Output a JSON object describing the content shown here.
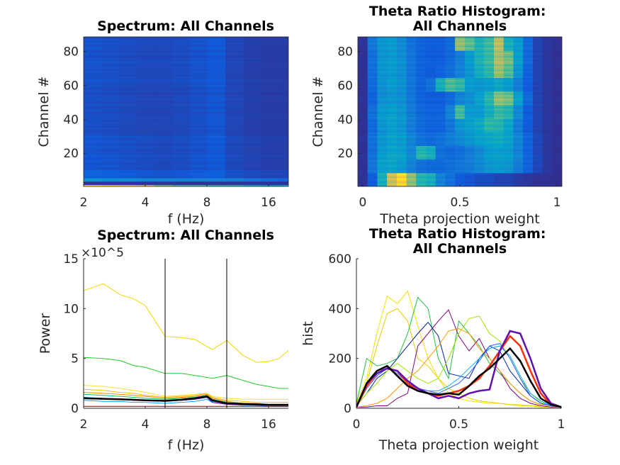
{
  "colormap": "parula",
  "chart_data": [
    {
      "type": "heatmap",
      "title": "Spectrum: All Channels",
      "xlabel": "f (Hz)",
      "ylabel": "Channel #",
      "x_scale": "log2",
      "xlim": [
        2,
        20
      ],
      "ylim": [
        0.5,
        88.5
      ],
      "xticks": [
        2,
        4,
        8,
        16
      ],
      "xtick_labels": [
        "2",
        "4",
        "8",
        "16"
      ],
      "yticks": [
        20,
        40,
        60,
        80
      ],
      "ytick_labels": [
        "20",
        "40",
        "60",
        "80"
      ],
      "value_unit_exponent": 5,
      "clim": [
        0,
        13
      ],
      "f": [
        2.2,
        2.7,
        3.3,
        4.0,
        4.9,
        6.0,
        7.3,
        8.9,
        10.9,
        13.3,
        16.3,
        19.9
      ],
      "channel_groups": [
        [
          1,
          1
        ],
        [
          2,
          3
        ],
        [
          4,
          5
        ],
        [
          6,
          10
        ],
        [
          11,
          30
        ],
        [
          31,
          60
        ],
        [
          61,
          88
        ]
      ],
      "values": [
        [
          12,
          11.5,
          11,
          10,
          8,
          7,
          7,
          6.5,
          6.5,
          5.5,
          5,
          5.5
        ],
        [
          0.3,
          0.3,
          0.3,
          0.3,
          0.3,
          0.3,
          0.3,
          0.3,
          0.3,
          0.3,
          0.3,
          0.3
        ],
        [
          4,
          3.8,
          3.6,
          3.4,
          3.3,
          3.2,
          3.2,
          3.1,
          3,
          2.6,
          2.2,
          2
        ],
        [
          1.8,
          1.7,
          1.6,
          1.4,
          1.3,
          1.4,
          1.6,
          1.7,
          1.2,
          1.0,
          0.9,
          0.9
        ],
        [
          1.4,
          1.3,
          1.2,
          1.1,
          1.0,
          1.1,
          1.3,
          1.5,
          1.0,
          0.8,
          0.7,
          0.7
        ],
        [
          1.2,
          1.1,
          1.0,
          0.9,
          0.9,
          1.0,
          1.2,
          1.4,
          0.9,
          0.7,
          0.6,
          0.6
        ],
        [
          1.3,
          1.2,
          1.1,
          1.0,
          1.0,
          1.1,
          1.3,
          1.5,
          0.9,
          0.7,
          0.6,
          0.6
        ]
      ]
    },
    {
      "type": "heatmap",
      "title": "Theta Ratio Histogram: All Channels",
      "xlabel": "Theta projection weight",
      "ylabel": "Channel #",
      "xlim": [
        -0.025,
        1.025
      ],
      "ylim": [
        0.5,
        88.5
      ],
      "xticks": [
        0,
        0.5,
        1
      ],
      "xtick_labels": [
        "0",
        "0.5",
        "1"
      ],
      "yticks": [
        20,
        40,
        60,
        80
      ],
      "ytick_labels": [
        "20",
        "40",
        "60",
        "80"
      ],
      "clim": [
        0,
        470
      ],
      "bins": [
        0,
        0.05,
        0.1,
        0.15,
        0.2,
        0.25,
        0.3,
        0.35,
        0.4,
        0.45,
        0.5,
        0.55,
        0.6,
        0.65,
        0.7,
        0.75,
        0.8,
        0.85,
        0.9,
        0.95,
        1
      ],
      "channel_groups": [
        [
          1,
          8
        ],
        [
          9,
          16
        ],
        [
          17,
          24
        ],
        [
          25,
          32
        ],
        [
          33,
          40
        ],
        [
          41,
          48
        ],
        [
          49,
          56
        ],
        [
          57,
          64
        ],
        [
          65,
          72
        ],
        [
          73,
          80
        ],
        [
          81,
          88
        ]
      ],
      "values": [
        [
          10,
          60,
          200,
          350,
          420,
          300,
          220,
          200,
          120,
          90,
          60,
          50,
          40,
          40,
          30,
          30,
          20,
          15,
          10,
          8,
          5
        ],
        [
          10,
          100,
          170,
          180,
          160,
          120,
          90,
          80,
          80,
          90,
          100,
          110,
          130,
          150,
          160,
          150,
          110,
          70,
          35,
          15,
          8
        ],
        [
          10,
          90,
          160,
          180,
          170,
          130,
          220,
          200,
          90,
          80,
          90,
          110,
          130,
          160,
          170,
          160,
          120,
          70,
          35,
          15,
          8
        ],
        [
          10,
          90,
          150,
          170,
          160,
          120,
          90,
          80,
          90,
          110,
          130,
          150,
          170,
          180,
          190,
          170,
          120,
          70,
          35,
          15,
          8
        ],
        [
          10,
          80,
          150,
          170,
          150,
          110,
          80,
          70,
          70,
          100,
          150,
          170,
          190,
          230,
          220,
          180,
          110,
          60,
          30,
          15,
          8
        ],
        [
          10,
          90,
          160,
          170,
          150,
          110,
          80,
          70,
          70,
          120,
          250,
          160,
          160,
          200,
          240,
          220,
          130,
          60,
          30,
          15,
          8
        ],
        [
          10,
          70,
          140,
          150,
          140,
          100,
          70,
          60,
          60,
          80,
          120,
          140,
          170,
          220,
          300,
          280,
          170,
          80,
          30,
          15,
          8
        ],
        [
          10,
          80,
          140,
          160,
          140,
          100,
          70,
          90,
          200,
          250,
          230,
          160,
          150,
          160,
          180,
          160,
          110,
          60,
          30,
          15,
          8
        ],
        [
          10,
          90,
          150,
          160,
          140,
          100,
          70,
          60,
          70,
          90,
          120,
          150,
          200,
          230,
          310,
          260,
          150,
          70,
          30,
          15,
          8
        ],
        [
          10,
          90,
          150,
          160,
          140,
          100,
          70,
          60,
          60,
          80,
          110,
          160,
          210,
          240,
          320,
          280,
          170,
          80,
          30,
          15,
          8
        ],
        [
          10,
          100,
          150,
          160,
          130,
          90,
          70,
          60,
          60,
          80,
          300,
          260,
          210,
          240,
          330,
          200,
          160,
          80,
          30,
          15,
          8
        ]
      ]
    },
    {
      "type": "line",
      "title": "Spectrum: All Channels",
      "xlabel": "f (Hz)",
      "ylabel": "Power",
      "x_scale": "log2",
      "xlim": [
        2,
        20
      ],
      "ylim": [
        0,
        15
      ],
      "y_exponent_label": "×10^5",
      "xticks": [
        2,
        4,
        8,
        16
      ],
      "xtick_labels": [
        "2",
        "4",
        "8",
        "16"
      ],
      "yticks": [
        0,
        5,
        10,
        15
      ],
      "ytick_labels": [
        "0",
        "5",
        "10",
        "15"
      ],
      "vertical_lines": [
        5,
        10
      ],
      "x": [
        2,
        2.5,
        3,
        3.5,
        4,
        5,
        6,
        7,
        8,
        8.5,
        10,
        12,
        14,
        16,
        18,
        20
      ],
      "series": [
        {
          "color": "#f2d600",
          "values": [
            11.8,
            12.5,
            11.4,
            11,
            10.3,
            7.2,
            7.1,
            6.9,
            6.2,
            5.9,
            6.8,
            5.3,
            4.6,
            4.7,
            5,
            5.8
          ]
        },
        {
          "color": "#22cc22",
          "values": [
            5.1,
            5.0,
            4.8,
            4.3,
            4.1,
            3.5,
            3.5,
            3.3,
            3.1,
            3.0,
            3.3,
            2.8,
            2.4,
            2.2,
            2.0,
            2.0
          ]
        },
        {
          "color": "#f5e030",
          "values": [
            2.3,
            2.2,
            2.0,
            1.8,
            1.6,
            1.2,
            1.3,
            1.4,
            1.5,
            1.2,
            1.0,
            0.9,
            0.9,
            0.9,
            0.9,
            0.9
          ]
        },
        {
          "color": "#f0c000",
          "values": [
            1.9,
            1.8,
            1.6,
            1.5,
            1.3,
            1.1,
            1.2,
            1.3,
            1.5,
            1.1,
            0.8,
            0.7,
            0.6,
            0.6,
            0.6,
            0.6
          ]
        },
        {
          "color": "#ff8800",
          "values": [
            1.6,
            1.5,
            1.4,
            1.3,
            1.2,
            1.0,
            1.1,
            1.2,
            1.4,
            1.0,
            0.7,
            0.5,
            0.5,
            0.4,
            0.4,
            0.4
          ]
        },
        {
          "color": "#00c060",
          "values": [
            1.4,
            1.3,
            1.2,
            1.1,
            1.0,
            0.9,
            1.0,
            1.1,
            1.3,
            0.9,
            0.6,
            0.5,
            0.4,
            0.4,
            0.4,
            0.4
          ]
        },
        {
          "color": "#0070e0",
          "values": [
            1.1,
            1.0,
            0.9,
            0.8,
            0.8,
            0.7,
            0.8,
            0.9,
            1.1,
            0.7,
            0.5,
            0.4,
            0.3,
            0.3,
            0.3,
            0.3
          ]
        },
        {
          "color": "#00a0ff",
          "values": [
            0.8,
            0.7,
            0.7,
            0.6,
            0.6,
            0.5,
            0.6,
            0.7,
            0.9,
            0.6,
            0.4,
            0.3,
            0.3,
            0.2,
            0.2,
            0.2
          ]
        },
        {
          "color": "#6010c0",
          "values": [
            1.0,
            0.95,
            0.9,
            0.85,
            0.8,
            0.7,
            0.8,
            0.9,
            1.1,
            0.6,
            0.4,
            0.35,
            0.3,
            0.3,
            0.3,
            0.3
          ]
        },
        {
          "color": "#000000",
          "values": [
            1.0,
            0.95,
            0.9,
            0.85,
            0.8,
            0.75,
            0.85,
            1.0,
            1.2,
            0.8,
            0.5,
            0.45,
            0.4,
            0.35,
            0.35,
            0.35
          ]
        },
        {
          "color": "#800000",
          "values": [
            0.2,
            0.2,
            0.2,
            0.2,
            0.2,
            0.2,
            0.2,
            0.2,
            0.2,
            0.2,
            0.2,
            0.2,
            0.2,
            0.2,
            0.2,
            0.2
          ]
        }
      ]
    },
    {
      "type": "line",
      "title": "Theta Ratio Histogram: All Channels",
      "xlabel": "Theta projection weight",
      "ylabel": "hist",
      "xlim": [
        0,
        1
      ],
      "ylim": [
        0,
        600
      ],
      "xticks": [
        0,
        0.5,
        1
      ],
      "xtick_labels": [
        "0",
        "0.5",
        "1"
      ],
      "yticks": [
        0,
        200,
        400,
        600
      ],
      "ytick_labels": [
        "0",
        "200",
        "400",
        "600"
      ],
      "x": [
        0,
        0.05,
        0.1,
        0.15,
        0.2,
        0.25,
        0.3,
        0.35,
        0.4,
        0.45,
        0.5,
        0.55,
        0.6,
        0.65,
        0.7,
        0.75,
        0.8,
        0.85,
        0.9,
        0.95,
        1
      ],
      "series": [
        {
          "color": "#f0e000",
          "values": [
            20,
            120,
            300,
            450,
            420,
            470,
            330,
            200,
            120,
            60,
            40,
            30,
            25,
            20,
            20,
            15,
            15,
            10,
            10,
            5,
            5
          ]
        },
        {
          "color": "#e8d000",
          "values": [
            15,
            100,
            250,
            380,
            400,
            350,
            200,
            170,
            120,
            80,
            60,
            40,
            30,
            25,
            20,
            15,
            10,
            10,
            5,
            5,
            5
          ]
        },
        {
          "color": "#20c040",
          "values": [
            20,
            200,
            170,
            180,
            200,
            300,
            445,
            400,
            200,
            120,
            350,
            300,
            250,
            180,
            140,
            100,
            60,
            30,
            15,
            10,
            5
          ]
        },
        {
          "color": "#0020a0",
          "values": [
            10,
            60,
            120,
            150,
            200,
            250,
            300,
            345,
            290,
            140,
            130,
            120,
            200,
            250,
            230,
            150,
            100,
            50,
            20,
            10,
            5
          ]
        },
        {
          "color": "#800080",
          "values": [
            5,
            5,
            10,
            10,
            40,
            60,
            250,
            300,
            350,
            395,
            290,
            230,
            280,
            200,
            150,
            80,
            40,
            20,
            10,
            5,
            5
          ]
        },
        {
          "color": "#ff9900",
          "values": [
            5,
            10,
            20,
            40,
            80,
            120,
            150,
            200,
            250,
            310,
            320,
            300,
            240,
            200,
            150,
            100,
            60,
            30,
            15,
            10,
            5
          ]
        },
        {
          "color": "#a0e000",
          "values": [
            10,
            60,
            100,
            150,
            180,
            150,
            120,
            100,
            120,
            200,
            300,
            360,
            370,
            300,
            270,
            200,
            120,
            60,
            25,
            10,
            5
          ]
        },
        {
          "color": "#00b0ff",
          "values": [
            10,
            100,
            150,
            160,
            150,
            110,
            80,
            70,
            70,
            90,
            120,
            160,
            200,
            240,
            250,
            210,
            130,
            60,
            30,
            10,
            5
          ]
        },
        {
          "color": "#3060ff",
          "values": [
            5,
            80,
            130,
            160,
            140,
            100,
            80,
            70,
            60,
            80,
            100,
            140,
            190,
            250,
            260,
            200,
            120,
            50,
            20,
            10,
            5
          ]
        },
        {
          "color": "#ff3000",
          "values": [
            5,
            90,
            140,
            160,
            150,
            100,
            70,
            60,
            50,
            60,
            70,
            90,
            120,
            170,
            230,
            290,
            250,
            150,
            60,
            15,
            5
          ]
        },
        {
          "color": "#6010b0",
          "values": [
            5,
            100,
            140,
            160,
            150,
            110,
            80,
            60,
            40,
            50,
            40,
            60,
            70,
            75,
            230,
            310,
            300,
            200,
            80,
            20,
            5
          ]
        },
        {
          "color": "#000000",
          "values": [
            5,
            100,
            150,
            170,
            130,
            90,
            70,
            60,
            55,
            60,
            55,
            90,
            130,
            160,
            200,
            240,
            190,
            110,
            40,
            15,
            5
          ]
        }
      ]
    }
  ]
}
